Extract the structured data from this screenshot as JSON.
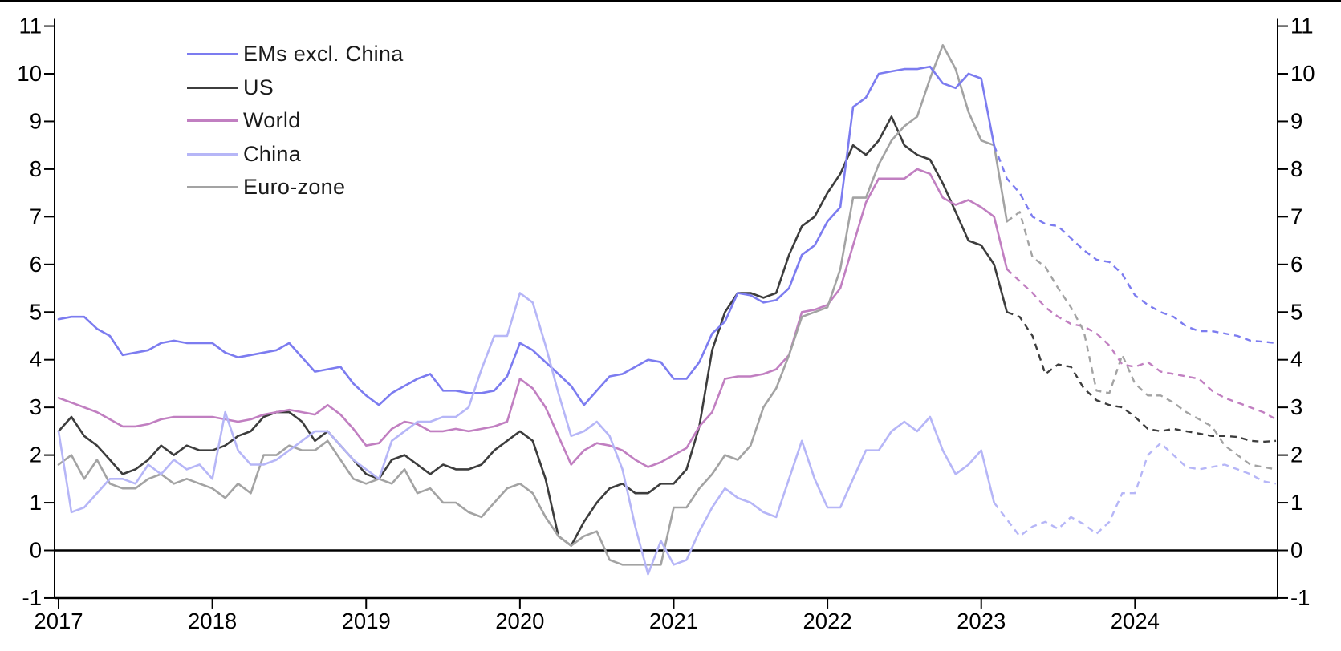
{
  "chart": {
    "background": "#ffffff",
    "axis_color": "#000000",
    "text_color": "#000000",
    "y_axis": {
      "min": -1,
      "max": 11,
      "tick_step": 1,
      "tick_labels": [
        "-1",
        "0",
        "1",
        "2",
        "3",
        "4",
        "5",
        "6",
        "7",
        "8",
        "9",
        "10",
        "11"
      ],
      "mirrored_right": true
    },
    "x_axis": {
      "tick_labels": [
        "2017",
        "2018",
        "2019",
        "2020",
        "2021",
        "2022",
        "2023",
        "2024"
      ]
    }
  },
  "chart_data": {
    "type": "line",
    "title": "",
    "xlabel": "",
    "ylabel": "",
    "ylim": [
      -1,
      11
    ],
    "grid": false,
    "legend_position": "top-left",
    "x_monthly_start": "2017-01",
    "x_monthly_end": "2024-12",
    "note": "dashed segments are forecasts",
    "series": [
      {
        "name": "EMs excl. China",
        "color": "#7c7cf0",
        "dashed_from": "2023-03",
        "values": [
          4.85,
          4.9,
          4.9,
          4.65,
          4.5,
          4.1,
          4.15,
          4.2,
          4.35,
          4.4,
          4.35,
          4.35,
          4.35,
          4.15,
          4.05,
          4.1,
          4.15,
          4.2,
          4.35,
          4.05,
          3.75,
          3.8,
          3.85,
          3.5,
          3.25,
          3.05,
          3.3,
          3.45,
          3.6,
          3.7,
          3.35,
          3.35,
          3.3,
          3.3,
          3.35,
          3.65,
          4.35,
          4.2,
          3.95,
          3.7,
          3.45,
          3.05,
          3.35,
          3.65,
          3.7,
          3.85,
          4.0,
          3.95,
          3.6,
          3.6,
          3.95,
          4.55,
          4.8,
          5.4,
          5.35,
          5.2,
          5.25,
          5.5,
          6.2,
          6.4,
          6.9,
          7.2,
          9.3,
          9.5,
          10.0,
          10.05,
          10.1,
          10.1,
          10.15,
          9.8,
          9.7,
          10.0,
          9.9,
          8.5,
          7.8,
          7.5,
          7.0,
          6.85,
          6.8,
          6.55,
          6.3,
          6.1,
          6.05,
          5.8,
          5.35,
          5.15,
          5.0,
          4.9,
          4.7,
          4.6,
          4.6,
          4.55,
          4.5,
          4.4,
          4.38,
          4.35
        ]
      },
      {
        "name": "US",
        "color": "#3d3d3d",
        "dashed_from": "2023-04",
        "values": [
          2.5,
          2.8,
          2.4,
          2.2,
          1.9,
          1.6,
          1.7,
          1.9,
          2.2,
          2.0,
          2.2,
          2.1,
          2.1,
          2.2,
          2.4,
          2.5,
          2.8,
          2.9,
          2.9,
          2.7,
          2.3,
          2.5,
          2.2,
          1.9,
          1.6,
          1.5,
          1.9,
          2.0,
          1.8,
          1.6,
          1.8,
          1.7,
          1.7,
          1.8,
          2.1,
          2.3,
          2.5,
          2.3,
          1.5,
          0.3,
          0.1,
          0.6,
          1.0,
          1.3,
          1.4,
          1.2,
          1.2,
          1.4,
          1.4,
          1.7,
          2.6,
          4.2,
          5.0,
          5.4,
          5.4,
          5.3,
          5.4,
          6.2,
          6.8,
          7.0,
          7.5,
          7.9,
          8.5,
          8.3,
          8.6,
          9.1,
          8.5,
          8.3,
          8.2,
          7.7,
          7.1,
          6.5,
          6.4,
          6.0,
          5.0,
          4.9,
          4.5,
          3.7,
          3.9,
          3.85,
          3.4,
          3.15,
          3.05,
          3.0,
          2.8,
          2.55,
          2.5,
          2.55,
          2.5,
          2.45,
          2.4,
          2.4,
          2.38,
          2.3,
          2.28,
          2.3
        ]
      },
      {
        "name": "World",
        "color": "#c17fc1",
        "dashed_from": "2023-04",
        "values": [
          3.2,
          3.1,
          3.0,
          2.9,
          2.75,
          2.6,
          2.6,
          2.65,
          2.75,
          2.8,
          2.8,
          2.8,
          2.8,
          2.75,
          2.7,
          2.75,
          2.85,
          2.9,
          2.95,
          2.9,
          2.85,
          3.05,
          2.85,
          2.55,
          2.2,
          2.25,
          2.55,
          2.7,
          2.65,
          2.5,
          2.5,
          2.55,
          2.5,
          2.55,
          2.6,
          2.7,
          3.6,
          3.4,
          3.0,
          2.4,
          1.8,
          2.1,
          2.25,
          2.2,
          2.1,
          1.9,
          1.75,
          1.85,
          2.0,
          2.15,
          2.6,
          2.9,
          3.6,
          3.65,
          3.65,
          3.7,
          3.8,
          4.1,
          5.0,
          5.05,
          5.15,
          5.5,
          6.4,
          7.3,
          7.8,
          7.8,
          7.8,
          8.0,
          7.9,
          7.4,
          7.25,
          7.35,
          7.2,
          7.0,
          5.9,
          5.65,
          5.4,
          5.1,
          4.9,
          4.75,
          4.7,
          4.55,
          4.3,
          3.9,
          3.85,
          3.95,
          3.75,
          3.7,
          3.65,
          3.6,
          3.35,
          3.2,
          3.1,
          3.0,
          2.9,
          2.75
        ]
      },
      {
        "name": "China",
        "color": "#b6b6f7",
        "dashed_from": "2023-03",
        "values": [
          2.5,
          0.8,
          0.9,
          1.2,
          1.5,
          1.5,
          1.4,
          1.8,
          1.6,
          1.9,
          1.7,
          1.8,
          1.5,
          2.9,
          2.1,
          1.8,
          1.8,
          1.9,
          2.1,
          2.3,
          2.5,
          2.5,
          2.2,
          1.9,
          1.7,
          1.5,
          2.3,
          2.5,
          2.7,
          2.7,
          2.8,
          2.8,
          3.0,
          3.8,
          4.5,
          4.5,
          5.4,
          5.2,
          4.3,
          3.3,
          2.4,
          2.5,
          2.7,
          2.4,
          1.7,
          0.5,
          -0.5,
          0.2,
          -0.3,
          -0.2,
          0.4,
          0.9,
          1.3,
          1.1,
          1.0,
          0.8,
          0.7,
          1.5,
          2.3,
          1.5,
          0.9,
          0.9,
          1.5,
          2.1,
          2.1,
          2.5,
          2.7,
          2.5,
          2.8,
          2.1,
          1.6,
          1.8,
          2.1,
          1.0,
          0.65,
          0.3,
          0.5,
          0.6,
          0.45,
          0.7,
          0.55,
          0.35,
          0.6,
          1.2,
          1.2,
          2.0,
          2.25,
          2.0,
          1.75,
          1.7,
          1.75,
          1.8,
          1.7,
          1.6,
          1.45,
          1.4
        ]
      },
      {
        "name": "Euro-zone",
        "color": "#a3a3a3",
        "dashed_from": "2023-04",
        "values": [
          1.8,
          2.0,
          1.5,
          1.9,
          1.4,
          1.3,
          1.3,
          1.5,
          1.6,
          1.4,
          1.5,
          1.4,
          1.3,
          1.1,
          1.4,
          1.2,
          2.0,
          2.0,
          2.2,
          2.1,
          2.1,
          2.3,
          1.9,
          1.5,
          1.4,
          1.5,
          1.4,
          1.7,
          1.2,
          1.3,
          1.0,
          1.0,
          0.8,
          0.7,
          1.0,
          1.3,
          1.4,
          1.2,
          0.7,
          0.3,
          0.1,
          0.3,
          0.4,
          -0.2,
          -0.3,
          -0.3,
          -0.3,
          -0.3,
          0.9,
          0.9,
          1.3,
          1.6,
          2.0,
          1.9,
          2.2,
          3.0,
          3.4,
          4.1,
          4.9,
          5.0,
          5.1,
          5.9,
          7.4,
          7.4,
          8.1,
          8.6,
          8.9,
          9.1,
          9.9,
          10.6,
          10.1,
          9.2,
          8.6,
          8.5,
          6.9,
          7.1,
          6.15,
          5.95,
          5.5,
          5.1,
          4.6,
          3.35,
          3.3,
          4.1,
          3.5,
          3.25,
          3.25,
          3.1,
          2.9,
          2.75,
          2.6,
          2.2,
          2.0,
          1.8,
          1.75,
          1.7
        ]
      }
    ]
  }
}
